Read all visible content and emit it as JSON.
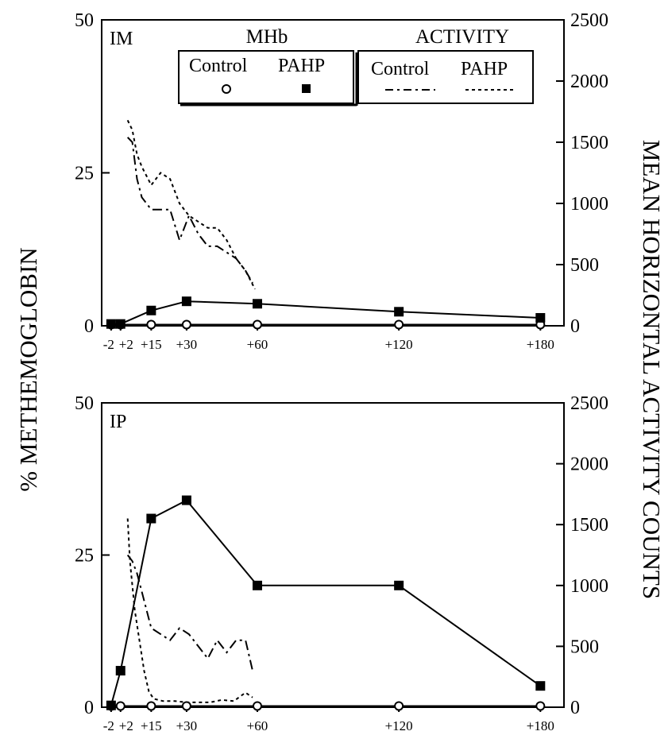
{
  "chart_data": {
    "type": "line",
    "ylabel_left": "% METHEMOGLOBIN",
    "ylabel_right": "MEAN HORIZONTAL ACTIVITY COUNTS",
    "xticks": [
      "-2",
      "+2",
      "+15",
      "+30",
      "+60",
      "+120",
      "+180"
    ],
    "xtick_minutes": [
      -2,
      2,
      15,
      30,
      60,
      120,
      180
    ],
    "xlim": [
      -6,
      190
    ],
    "ylim_left": [
      0,
      50
    ],
    "yticks_left": [
      "0",
      "25",
      "50"
    ],
    "ylim_right": [
      0,
      2500
    ],
    "yticks_right": [
      "0",
      "500",
      "1000",
      "1500",
      "2000",
      "2500"
    ],
    "legend": {
      "mhb_title": "MHb",
      "activity_title": "ACTIVITY",
      "control": "Control",
      "pahp": "PAHP"
    },
    "panels": [
      {
        "label": "IM",
        "mhb_control": {
          "x": [
            -2,
            2,
            15,
            30,
            60,
            120,
            180
          ],
          "y": [
            0.2,
            0.2,
            0.2,
            0.2,
            0.2,
            0.2,
            0.2
          ]
        },
        "mhb_pahp": {
          "x": [
            -2,
            2,
            15,
            30,
            60,
            120,
            180
          ],
          "y": [
            0.3,
            0.3,
            2.5,
            4.0,
            3.6,
            2.3,
            1.3
          ]
        },
        "activity_control": {
          "x": [
            5,
            7,
            9,
            11,
            15,
            19,
            23,
            27,
            31,
            35,
            39,
            43,
            47,
            51,
            55,
            58
          ],
          "y": [
            1540,
            1500,
            1200,
            1050,
            950,
            950,
            950,
            700,
            900,
            750,
            650,
            650,
            600,
            550,
            450,
            350
          ]
        },
        "activity_pahp": {
          "x": [
            5,
            7,
            9,
            11,
            15,
            19,
            23,
            27,
            31,
            35,
            39,
            43,
            47,
            51,
            55,
            59
          ],
          "y": [
            1680,
            1600,
            1400,
            1300,
            1150,
            1250,
            1200,
            1000,
            900,
            850,
            800,
            800,
            700,
            550,
            450,
            300
          ]
        }
      },
      {
        "label": "IP",
        "mhb_control": {
          "x": [
            -2,
            2,
            15,
            30,
            60,
            120,
            180
          ],
          "y": [
            0.2,
            0.2,
            0.2,
            0.2,
            0.2,
            0.2,
            0.2
          ]
        },
        "mhb_pahp": {
          "x": [
            -2,
            2,
            15,
            30,
            60,
            120,
            180
          ],
          "y": [
            0.3,
            6,
            31,
            34,
            20,
            20,
            3.5
          ]
        },
        "activity_control": {
          "x": [
            5,
            7,
            9,
            11,
            15,
            19,
            23,
            27,
            31,
            35,
            39,
            43,
            47,
            51,
            55,
            58
          ],
          "y": [
            1250,
            1200,
            1100,
            950,
            650,
            600,
            550,
            650,
            600,
            500,
            400,
            550,
            450,
            550,
            550,
            300
          ]
        },
        "activity_pahp": {
          "x": [
            5,
            6,
            8,
            10,
            12,
            14,
            16,
            20,
            25,
            30,
            35,
            40,
            45,
            50,
            55,
            58
          ],
          "y": [
            1550,
            1200,
            800,
            550,
            300,
            130,
            70,
            50,
            50,
            40,
            40,
            40,
            60,
            50,
            120,
            80
          ]
        }
      }
    ]
  }
}
